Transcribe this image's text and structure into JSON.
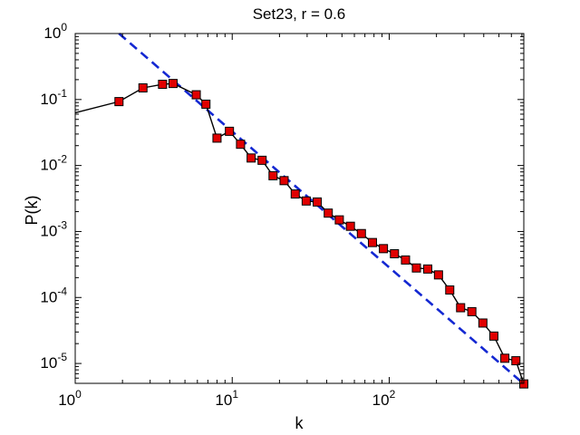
{
  "chart_data": {
    "type": "line",
    "title": "Set23, r = 0.6",
    "xlabel": "k",
    "ylabel": "P(k)",
    "xscale": "log",
    "yscale": "log",
    "xlim": [
      1,
      720
    ],
    "ylim": [
      5e-06,
      1
    ],
    "grid": false,
    "x_ticks": [
      {
        "value": 1,
        "base": "10",
        "exp": "0"
      },
      {
        "value": 10,
        "base": "10",
        "exp": "1"
      },
      {
        "value": 100,
        "base": "10",
        "exp": "2"
      }
    ],
    "y_ticks": [
      {
        "value": 1e-05,
        "base": "10",
        "exp": "-5"
      },
      {
        "value": 0.0001,
        "base": "10",
        "exp": "-4"
      },
      {
        "value": 0.001,
        "base": "10",
        "exp": "-3"
      },
      {
        "value": 0.01,
        "base": "10",
        "exp": "-2"
      },
      {
        "value": 0.1,
        "base": "10",
        "exp": "-1"
      },
      {
        "value": 1,
        "base": "10",
        "exp": "0"
      }
    ],
    "series": [
      {
        "style": "line-with-square-markers",
        "line_color": "#000000",
        "marker_color": "#e00000",
        "line_start": {
          "x": 1,
          "y": 0.063
        },
        "points": [
          {
            "x": 1.9,
            "y": 0.093
          },
          {
            "x": 2.7,
            "y": 0.15
          },
          {
            "x": 3.6,
            "y": 0.17
          },
          {
            "x": 4.2,
            "y": 0.175
          },
          {
            "x": 5.9,
            "y": 0.118
          },
          {
            "x": 6.8,
            "y": 0.085
          },
          {
            "x": 8.0,
            "y": 0.026
          },
          {
            "x": 9.6,
            "y": 0.033
          },
          {
            "x": 11.3,
            "y": 0.021
          },
          {
            "x": 13.2,
            "y": 0.013
          },
          {
            "x": 15.5,
            "y": 0.012
          },
          {
            "x": 18.2,
            "y": 0.007
          },
          {
            "x": 21.4,
            "y": 0.0059
          },
          {
            "x": 25.2,
            "y": 0.0037
          },
          {
            "x": 29.6,
            "y": 0.0029
          },
          {
            "x": 34.8,
            "y": 0.0028
          },
          {
            "x": 40.9,
            "y": 0.0019
          },
          {
            "x": 48.1,
            "y": 0.0015
          },
          {
            "x": 56.6,
            "y": 0.0012
          },
          {
            "x": 66.5,
            "y": 0.00093
          },
          {
            "x": 78.2,
            "y": 0.00068
          },
          {
            "x": 91.9,
            "y": 0.00055
          },
          {
            "x": 108,
            "y": 0.00046
          },
          {
            "x": 127,
            "y": 0.00037
          },
          {
            "x": 149,
            "y": 0.00028
          },
          {
            "x": 176,
            "y": 0.00027
          },
          {
            "x": 206,
            "y": 0.00022
          },
          {
            "x": 243,
            "y": 0.00013
          },
          {
            "x": 285,
            "y": 7e-05
          },
          {
            "x": 336,
            "y": 6.1e-05
          },
          {
            "x": 395,
            "y": 4.1e-05
          },
          {
            "x": 464,
            "y": 2.6e-05
          },
          {
            "x": 545,
            "y": 1.2e-05
          },
          {
            "x": 641,
            "y": 1.1e-05
          },
          {
            "x": 720,
            "y": 4.9e-06
          }
        ]
      },
      {
        "style": "dashed-fit",
        "line_color": "#1428d2",
        "points": [
          {
            "x": 1.9,
            "y": 1.0
          },
          {
            "x": 720,
            "y": 4.9e-06
          }
        ]
      }
    ]
  }
}
